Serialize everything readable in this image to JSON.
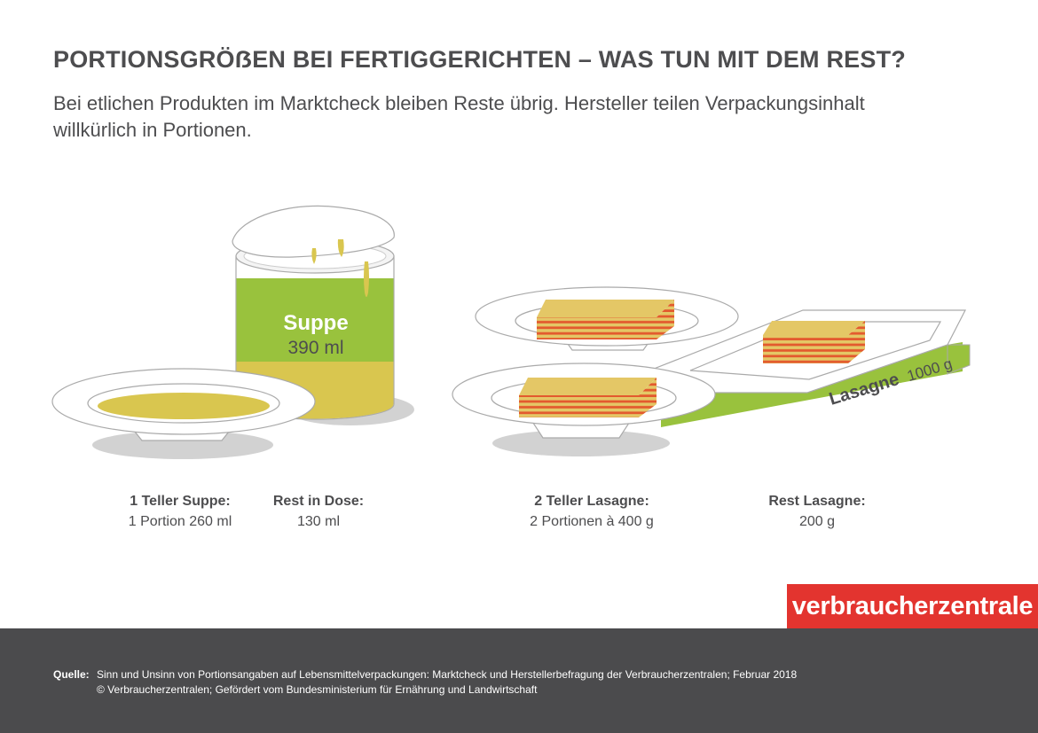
{
  "header": {
    "title": "PORTIONSGRÖẞEN BEI FERTIGGERICHTEN – WAS TUN MIT DEM REST?",
    "subtitle": "Bei etlichen Produkten im Marktcheck bleiben Reste übrig. Hersteller teilen Verpackungsinhalt willkürlich in Portionen."
  },
  "illustration": {
    "can_label": "Suppe",
    "can_volume": "390 ml",
    "box_label": "Lasagne",
    "box_weight": "1000 g"
  },
  "captions": [
    {
      "heading": "1 Teller Suppe:",
      "value": "1 Portion 260 ml"
    },
    {
      "heading": "Rest in Dose:",
      "value": "130 ml"
    },
    {
      "heading": "2 Teller Lasagne:",
      "value": "2 Portionen à 400 g"
    },
    {
      "heading": "Rest Lasagne:",
      "value": "200 g"
    }
  ],
  "brand": "verbraucherzentrale",
  "footer": {
    "source_label": "Quelle:",
    "source_line1": "Sinn und Unsinn von Portionsangaben auf Lebensmittelverpackungen:  Marktcheck und Herstellerbefragung der Verbraucherzentralen; Februar 2018",
    "source_line2": "© Verbraucherzentralen; Gefördert vom Bundesministerium für Ernährung und Landwirtschaft"
  },
  "colors": {
    "green": "#99c23d",
    "soup": "#d9c64f",
    "lasagne_layer": "#e4c766",
    "lasagne_sauce": "#e35a2e",
    "shadow": "#d2d2d2",
    "outline": "#aaaaaa",
    "text": "#4d4d4f",
    "brand_red": "#e3342f",
    "footer_bg": "#4b4b4d"
  }
}
